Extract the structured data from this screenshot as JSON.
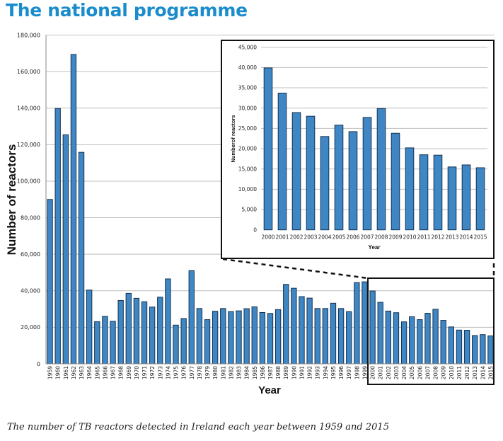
{
  "header": {
    "title": "The national programme"
  },
  "caption": "The number of TB reactors detected in Ireland each year between 1959 and 2015",
  "colors": {
    "title": "#1a8ccc",
    "bar_fill": "#3f86c4",
    "bar_stroke": "#16324f",
    "grid": "#bfbfbf",
    "frame": "#111111"
  },
  "chart_data": [
    {
      "id": "main",
      "type": "bar",
      "title": "",
      "xlabel": "Year",
      "ylabel": "Number of reactors",
      "ylim": [
        0,
        180000
      ],
      "yticks": [
        0,
        20000,
        40000,
        60000,
        80000,
        100000,
        120000,
        140000,
        160000,
        180000
      ],
      "ytick_labels": [
        "0",
        "20,000",
        "40,000",
        "60,000",
        "80,000",
        "100,000",
        "120,000",
        "140,000",
        "160,000",
        "180,000"
      ],
      "grid": true,
      "categories": [
        "1959",
        "1960",
        "1961",
        "1962",
        "1963",
        "1964",
        "1965",
        "1966",
        "1967",
        "1968",
        "1969",
        "1970",
        "1971",
        "1972",
        "1973",
        "1974",
        "1975",
        "1976",
        "1977",
        "1978",
        "1979",
        "1980",
        "1981",
        "1982",
        "1983",
        "1984",
        "1985",
        "1986",
        "1987",
        "1988",
        "1989",
        "1990",
        "1991",
        "1992",
        "1993",
        "1994",
        "1995",
        "1996",
        "1997",
        "1998",
        "1999",
        "2000",
        "2001",
        "2002",
        "2003",
        "2004",
        "2005",
        "2006",
        "2007",
        "2008",
        "2009",
        "2010",
        "2011",
        "2012",
        "2013",
        "2014",
        "2015"
      ],
      "values": [
        90000,
        139800,
        125400,
        169400,
        115800,
        40400,
        23100,
        26000,
        23300,
        34700,
        38600,
        35900,
        34000,
        31100,
        36500,
        46500,
        21200,
        24800,
        51000,
        30300,
        24200,
        28800,
        30300,
        28600,
        29000,
        30200,
        31200,
        28100,
        27600,
        29700,
        43500,
        41400,
        36800,
        36000,
        30300,
        30300,
        33200,
        30300,
        28600,
        44500,
        44900,
        39900,
        33700,
        28900,
        28000,
        23000,
        25800,
        24200,
        27700,
        29900,
        23800,
        20200,
        18500,
        18400,
        15500,
        16000,
        15300
      ],
      "highlight_range": [
        "2000",
        "2015"
      ]
    },
    {
      "id": "inset",
      "type": "bar",
      "title": "",
      "xlabel": "Year",
      "ylabel": "Numberof reactors",
      "ylim": [
        0,
        45000
      ],
      "yticks": [
        0,
        5000,
        10000,
        15000,
        20000,
        25000,
        30000,
        35000,
        40000,
        45000
      ],
      "ytick_labels": [
        "0",
        "5,000",
        "10,000",
        "15,000",
        "20,000",
        "25,000",
        "30,000",
        "35,000",
        "40,000",
        "45,000"
      ],
      "grid": true,
      "categories": [
        "2000",
        "2001",
        "2002",
        "2003",
        "2004",
        "2005",
        "2006",
        "2007",
        "2008",
        "2009",
        "2010",
        "2011",
        "2012",
        "2013",
        "2014",
        "2015"
      ],
      "values": [
        39900,
        33700,
        28900,
        28000,
        23000,
        25800,
        24200,
        27700,
        29900,
        23800,
        20200,
        18500,
        18400,
        15500,
        16000,
        15300
      ]
    }
  ]
}
